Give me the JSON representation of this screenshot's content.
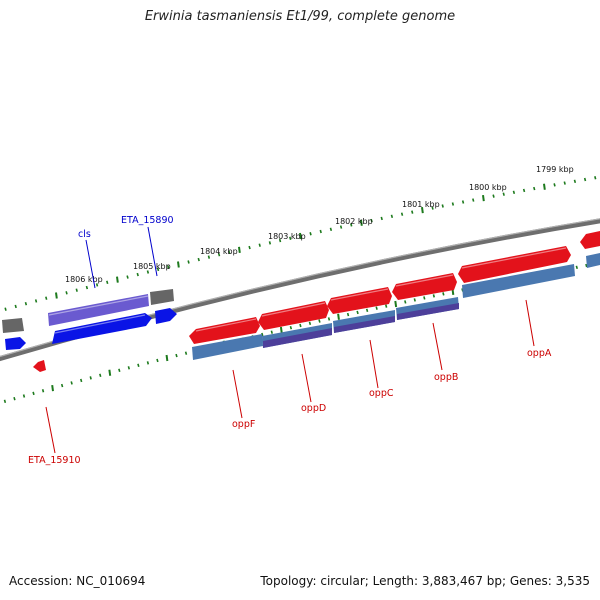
{
  "title": "Erwinia tasmaniensis Et1/99, complete genome",
  "footer": {
    "accession": "Accession: NC_010694",
    "summary": "Topology: circular; Length: 3,883,467 bp; Genes: 3,535"
  },
  "colors": {
    "backbone": "#7a7a7a",
    "tick": "#1d7a1d",
    "forward_gene": "#e3121b",
    "reverse_gene": "#0a14e6",
    "forward_cds": "#4a78b0",
    "reverse_cds": "#6a5ad0",
    "pseudo": "#666666",
    "red_label": "#cc0000",
    "blue_label": "#0000cc"
  },
  "ruler": {
    "unit": "kbp",
    "labels": [
      "1799 kbp",
      "1800 kbp",
      "1801 kbp",
      "1802 kbp",
      "1803 kbp",
      "1804 kbp",
      "1805 kbp",
      "1806 kbp"
    ]
  },
  "gene_labels": [
    {
      "name": "cls",
      "color": "blue"
    },
    {
      "name": "ETA_15890",
      "color": "blue"
    },
    {
      "name": "oppF",
      "color": "red"
    },
    {
      "name": "oppD",
      "color": "red"
    },
    {
      "name": "oppC",
      "color": "red"
    },
    {
      "name": "oppB",
      "color": "red"
    },
    {
      "name": "oppA",
      "color": "red"
    },
    {
      "name": "ETA_15910",
      "color": "red"
    }
  ]
}
